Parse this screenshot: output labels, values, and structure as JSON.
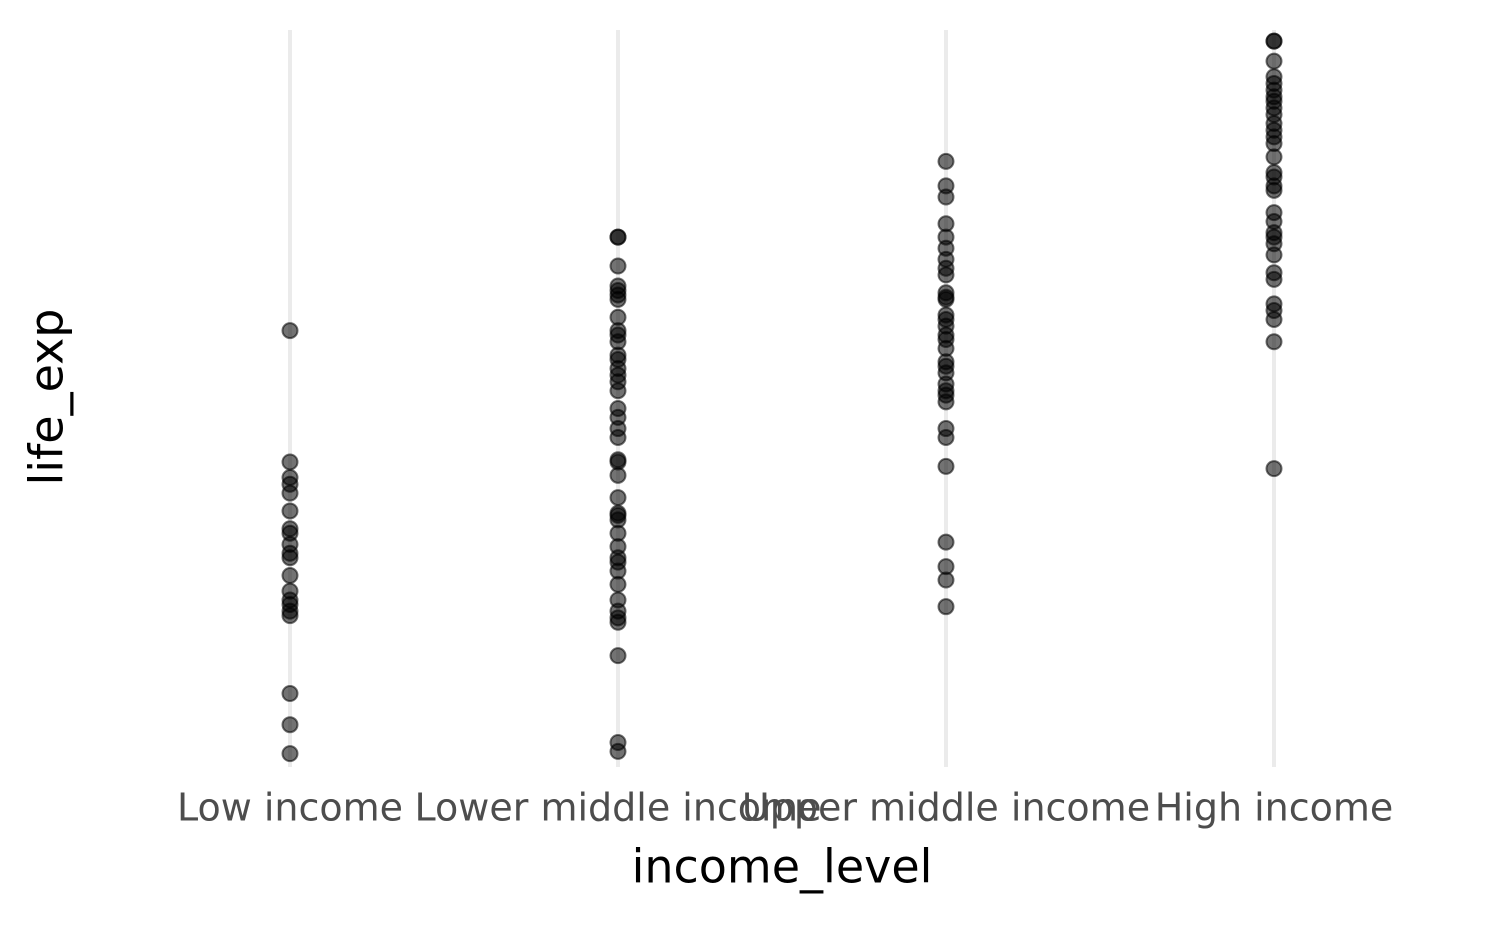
{
  "chart_data": {
    "type": "strip",
    "x_label": "income_level",
    "y_label": "life_exp",
    "categories": [
      "Low income",
      "Lower middle income",
      "Upper middle income",
      "High income"
    ],
    "values": [
      [
        72.0,
        66.1,
        65.4,
        65.1,
        64.7,
        63.9,
        63.1,
        62.9,
        62.4,
        62.0,
        61.8,
        61.0,
        60.3,
        59.9,
        59.7,
        59.4,
        59.2,
        55.7,
        54.3,
        53.0
      ],
      [
        76.2,
        76.2,
        74.9,
        74.0,
        73.8,
        73.6,
        73.4,
        72.6,
        72.0,
        71.8,
        71.5,
        70.9,
        70.7,
        70.3,
        70.0,
        69.7,
        69.3,
        68.5,
        68.1,
        67.6,
        67.2,
        66.2,
        66.1,
        65.5,
        64.5,
        63.8,
        63.7,
        63.5,
        62.9,
        62.3,
        61.8,
        61.6,
        61.2,
        60.6,
        59.9,
        59.4,
        59.1,
        58.9,
        57.4,
        53.5,
        53.1
      ],
      [
        79.6,
        78.5,
        78.0,
        76.8,
        76.2,
        75.7,
        75.2,
        74.8,
        74.5,
        73.7,
        73.5,
        73.4,
        72.7,
        72.5,
        72.2,
        71.8,
        71.6,
        71.2,
        70.6,
        70.4,
        70.1,
        69.6,
        69.3,
        69.1,
        68.8,
        67.6,
        67.2,
        65.9,
        62.5,
        61.4,
        60.8,
        59.6
      ],
      [
        85.0,
        85.0,
        84.1,
        83.4,
        83.1,
        82.8,
        82.5,
        82.3,
        82.0,
        81.7,
        81.3,
        81.0,
        80.7,
        80.4,
        79.8,
        79.1,
        78.9,
        78.5,
        78.3,
        77.3,
        76.9,
        76.4,
        76.2,
        75.9,
        75.4,
        74.6,
        74.3,
        73.2,
        72.9,
        72.5,
        71.5,
        65.8
      ]
    ],
    "ylim": [
      52.4,
      85.5
    ],
    "grid": true,
    "color": "#000000",
    "alpha": 0.55
  }
}
